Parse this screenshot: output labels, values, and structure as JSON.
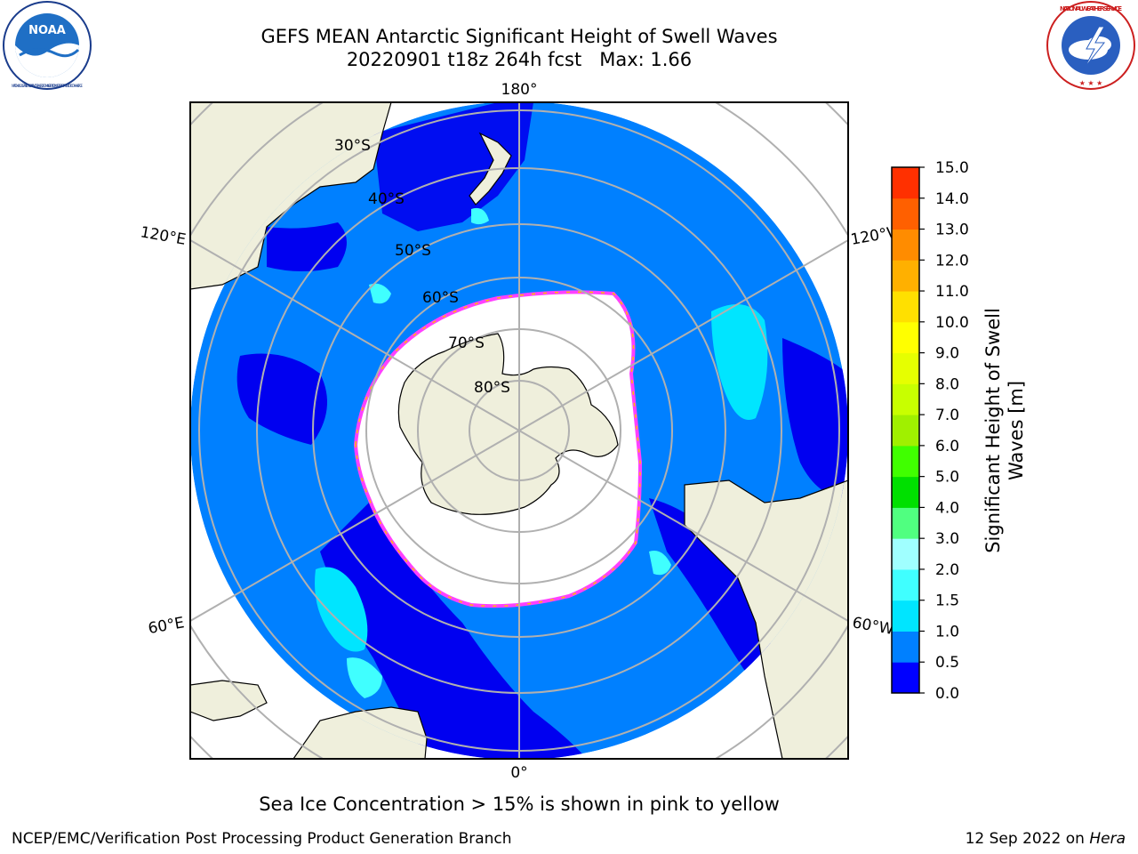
{
  "header": {
    "title_line1": "GEFS MEAN Antarctic Significant Height of Swell Waves",
    "title_line2": "20220901 t18z 264h fcst   Max: 1.66"
  },
  "logos": {
    "left": "noaa-logo",
    "right": "national-weather-service-logo",
    "left_text": "NOAA",
    "left_ring_text": "NATIONAL OCEANIC AND ATMOSPHERIC ADMINISTRATION · U.S. DEPARTMENT OF COMMERCE",
    "right_ring_text": "NATIONAL WEATHER SERVICE"
  },
  "map": {
    "projection": "south-polar-stereographic",
    "longitude_labels": {
      "top": "180°",
      "bottom": "0°",
      "upper_left": "120°E",
      "lower_left": "60°E",
      "upper_right": "120°W",
      "lower_right": "60°W"
    },
    "latitude_labels": [
      "30°S",
      "40°S",
      "50°S",
      "60°S",
      "70°S",
      "80°S"
    ],
    "colors": {
      "land": "#efefdc",
      "ice_free_low": "#0000f0",
      "swell_0_5_1": "#0080ff",
      "swell_1_1_5": "#00ffff",
      "sea_ice": "#ffffff",
      "ice_edge_pink": "#ff40ff",
      "ice_edge_yellow": "#ffc000",
      "graticule": "#b0b0b0"
    }
  },
  "colorbar": {
    "title_line1": "Significant Height of Swell",
    "title_line2": "Waves [m]",
    "ticks": [
      "0.0",
      "0.5",
      "1.0",
      "1.5",
      "2.0",
      "3.0",
      "4.0",
      "5.0",
      "6.0",
      "7.0",
      "8.0",
      "9.0",
      "10.0",
      "11.0",
      "12.0",
      "13.0",
      "14.0",
      "15.0"
    ],
    "colors": [
      "#0000ff",
      "#0080ff",
      "#00e5ff",
      "#40ffff",
      "#a0ffff",
      "#50ff80",
      "#00e000",
      "#40ff00",
      "#a0f000",
      "#c8ff00",
      "#e6ff00",
      "#ffff00",
      "#ffe000",
      "#ffb000",
      "#ff8c00",
      "#ff6000",
      "#ff3000",
      "#ff0000"
    ]
  },
  "note": "Sea Ice Concentration > 15% is shown in pink to yellow",
  "footer": {
    "left": "NCEP/EMC/Verification Post Processing Product Generation Branch",
    "right_date": "12 Sep 2022 on ",
    "right_machine": "Hera"
  }
}
